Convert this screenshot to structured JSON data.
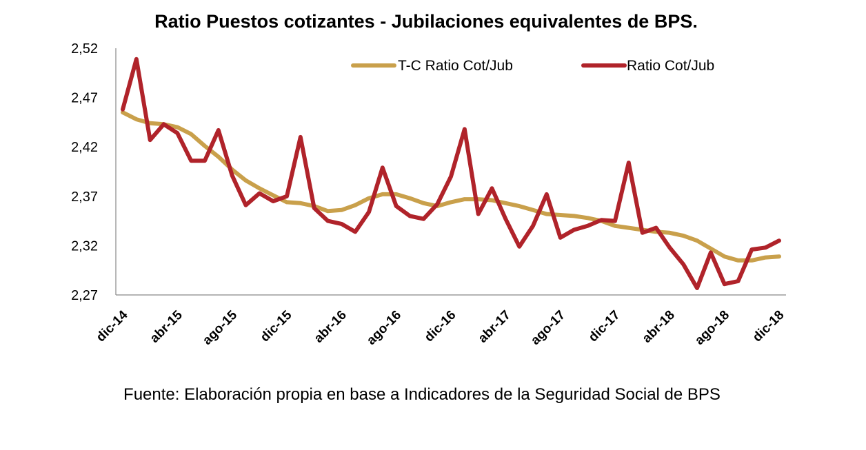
{
  "chart_data": {
    "type": "line",
    "title": "Ratio Puestos cotizantes - Jubilaciones equivalentes de BPS.",
    "source": "Fuente: Elaboración propia en base a Indicadores de la Seguridad Social de BPS",
    "xlabel": "",
    "ylabel": "",
    "ylim": [
      2.27,
      2.52
    ],
    "y_ticks": [
      "2,52",
      "2,47",
      "2,42",
      "2,37",
      "2,32",
      "2,27"
    ],
    "y_tick_values": [
      2.52,
      2.47,
      2.42,
      2.37,
      2.32,
      2.27
    ],
    "x": [
      "dic-14",
      "ene-15",
      "feb-15",
      "mar-15",
      "abr-15",
      "may-15",
      "jun-15",
      "jul-15",
      "ago-15",
      "sep-15",
      "oct-15",
      "nov-15",
      "dic-15",
      "ene-16",
      "feb-16",
      "mar-16",
      "abr-16",
      "may-16",
      "jun-16",
      "jul-16",
      "ago-16",
      "sep-16",
      "oct-16",
      "nov-16",
      "dic-16",
      "ene-17",
      "feb-17",
      "mar-17",
      "abr-17",
      "may-17",
      "jun-17",
      "jul-17",
      "ago-17",
      "sep-17",
      "oct-17",
      "nov-17",
      "dic-17",
      "ene-18",
      "feb-18",
      "mar-18",
      "abr-18",
      "may-18",
      "jun-18",
      "jul-18",
      "ago-18",
      "sep-18",
      "oct-18",
      "nov-18",
      "dic-18"
    ],
    "x_tick_labels": [
      "dic-14",
      "abr-15",
      "ago-15",
      "dic-15",
      "abr-16",
      "ago-16",
      "dic-16",
      "abr-17",
      "ago-17",
      "dic-17",
      "abr-18",
      "ago-18",
      "dic-18"
    ],
    "x_tick_every": 4,
    "grid": false,
    "legend_position": "top-right",
    "series": [
      {
        "name": "T-C Ratio Cot/Jub",
        "color": "#c9a04b",
        "values": [
          2.455,
          2.448,
          2.444,
          2.443,
          2.44,
          2.433,
          2.421,
          2.41,
          2.397,
          2.386,
          2.378,
          2.371,
          2.364,
          2.363,
          2.36,
          2.355,
          2.356,
          2.361,
          2.368,
          2.372,
          2.372,
          2.368,
          2.363,
          2.36,
          2.364,
          2.367,
          2.367,
          2.366,
          2.363,
          2.36,
          2.356,
          2.352,
          2.351,
          2.35,
          2.348,
          2.345,
          2.34,
          2.338,
          2.336,
          2.334,
          2.333,
          2.33,
          2.325,
          2.317,
          2.309,
          2.305,
          2.305,
          2.308,
          2.309
        ]
      },
      {
        "name": "Ratio Cot/Jub",
        "color": "#b0232a",
        "values": [
          2.458,
          2.509,
          2.427,
          2.443,
          2.434,
          2.406,
          2.406,
          2.437,
          2.391,
          2.361,
          2.373,
          2.365,
          2.37,
          2.43,
          2.358,
          2.345,
          2.342,
          2.334,
          2.354,
          2.399,
          2.36,
          2.35,
          2.347,
          2.362,
          2.39,
          2.438,
          2.352,
          2.378,
          2.347,
          2.319,
          2.34,
          2.372,
          2.328,
          2.336,
          2.34,
          2.346,
          2.345,
          2.404,
          2.333,
          2.338,
          2.318,
          2.301,
          2.277,
          2.313,
          2.281,
          2.284,
          2.316,
          2.318,
          2.325
        ]
      }
    ]
  }
}
